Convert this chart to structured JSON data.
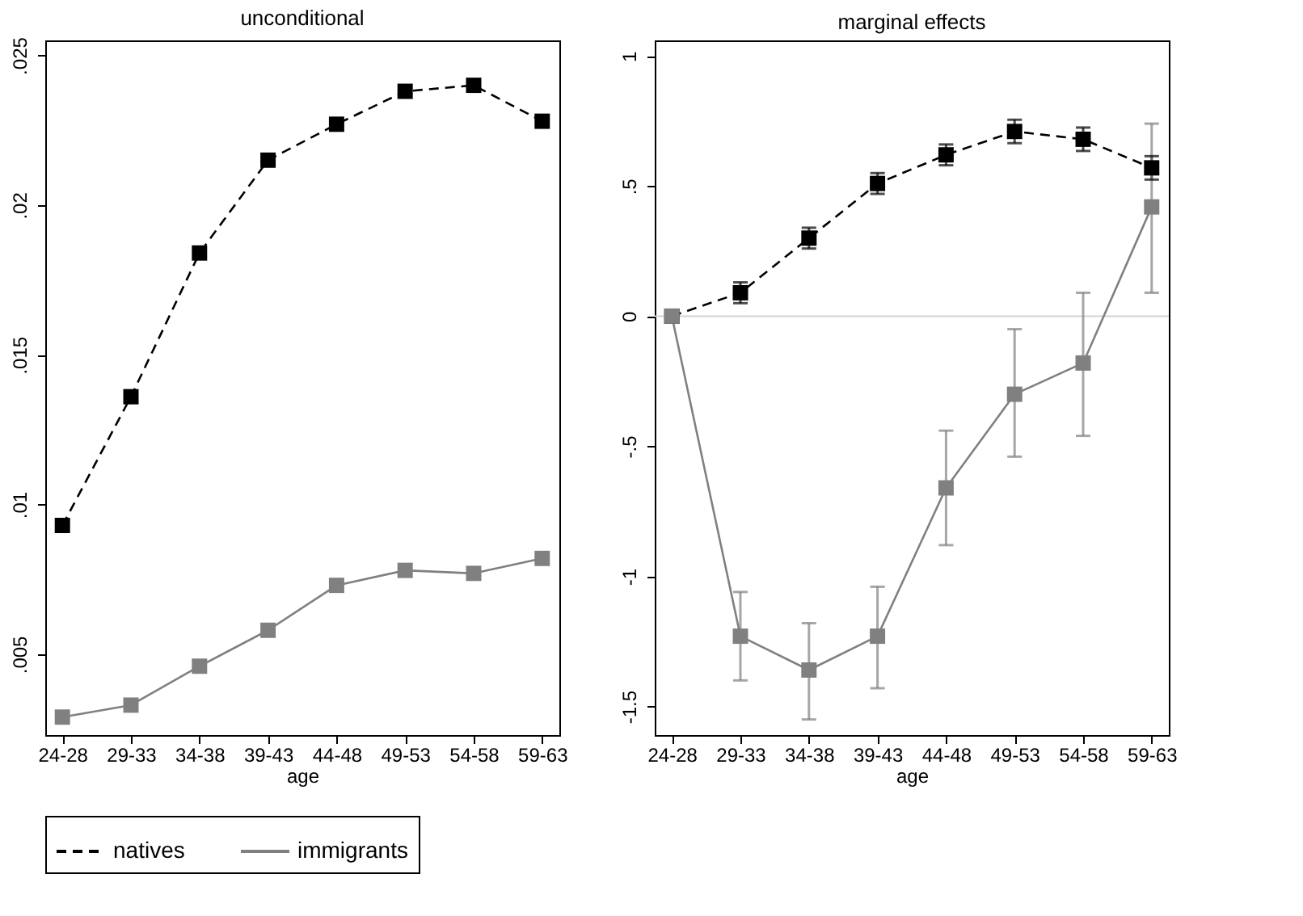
{
  "chart_data": [
    {
      "type": "line",
      "title": "unconditional",
      "xlabel": "age",
      "categories": [
        "24-28",
        "29-33",
        "34-38",
        "39-43",
        "44-48",
        "49-53",
        "54-58",
        "59-63"
      ],
      "ylim": [
        0.0023,
        0.0255
      ],
      "yticks": [
        {
          "value": 0.005,
          "label": ".005"
        },
        {
          "value": 0.01,
          "label": ".01"
        },
        {
          "value": 0.015,
          "label": ".015"
        },
        {
          "value": 0.02,
          "label": ".02"
        },
        {
          "value": 0.025,
          "label": ".025"
        }
      ],
      "series": [
        {
          "name": "natives",
          "color": "#000000",
          "line_style": "dashed",
          "values": [
            0.0093,
            0.0136,
            0.0184,
            0.0215,
            0.0227,
            0.0238,
            0.024,
            0.0228
          ]
        },
        {
          "name": "immigrants",
          "color": "#808080",
          "line_style": "solid",
          "values": [
            0.0029,
            0.0033,
            0.0046,
            0.0058,
            0.0073,
            0.0078,
            0.0077,
            0.0082
          ]
        }
      ],
      "marker": "square",
      "grid": false,
      "legend": "bottom"
    },
    {
      "type": "line",
      "title": "marginal effects",
      "xlabel": "age",
      "categories": [
        "24-28",
        "29-33",
        "34-38",
        "39-43",
        "44-48",
        "49-53",
        "54-58",
        "59-63"
      ],
      "ylim": [
        -1.61,
        1.06
      ],
      "yticks": [
        {
          "value": -1.5,
          "label": "-1.5"
        },
        {
          "value": -1,
          "label": "-1"
        },
        {
          "value": -0.5,
          "label": "-.5"
        },
        {
          "value": 0,
          "label": "0"
        },
        {
          "value": 0.5,
          "label": ".5"
        },
        {
          "value": 1,
          "label": "1"
        }
      ],
      "series": [
        {
          "name": "natives",
          "color": "#000000",
          "line_style": "dashed",
          "values": [
            0,
            0.09,
            0.3,
            0.51,
            0.62,
            0.71,
            0.68,
            0.57
          ],
          "errors": [
            null,
            0.04,
            0.04,
            0.04,
            0.04,
            0.045,
            0.045,
            0.045
          ]
        },
        {
          "name": "immigrants",
          "color": "#808080",
          "line_style": "solid",
          "values": [
            0,
            -1.23,
            -1.36,
            -1.23,
            -0.66,
            -0.3,
            -0.18,
            0.42
          ],
          "errors": [
            null,
            [
              -1.4,
              -1.06
            ],
            [
              -1.55,
              -1.18
            ],
            [
              -1.43,
              -1.04
            ],
            [
              -0.88,
              -0.44
            ],
            [
              -0.54,
              -0.05
            ],
            [
              -0.46,
              0.09
            ],
            [
              0.09,
              0.74
            ]
          ]
        }
      ],
      "ref_lines": [
        {
          "axis": "y",
          "value": 0,
          "color": "#d3d3d3"
        }
      ],
      "marker": "square",
      "grid": false,
      "legend": "bottom"
    }
  ]
}
